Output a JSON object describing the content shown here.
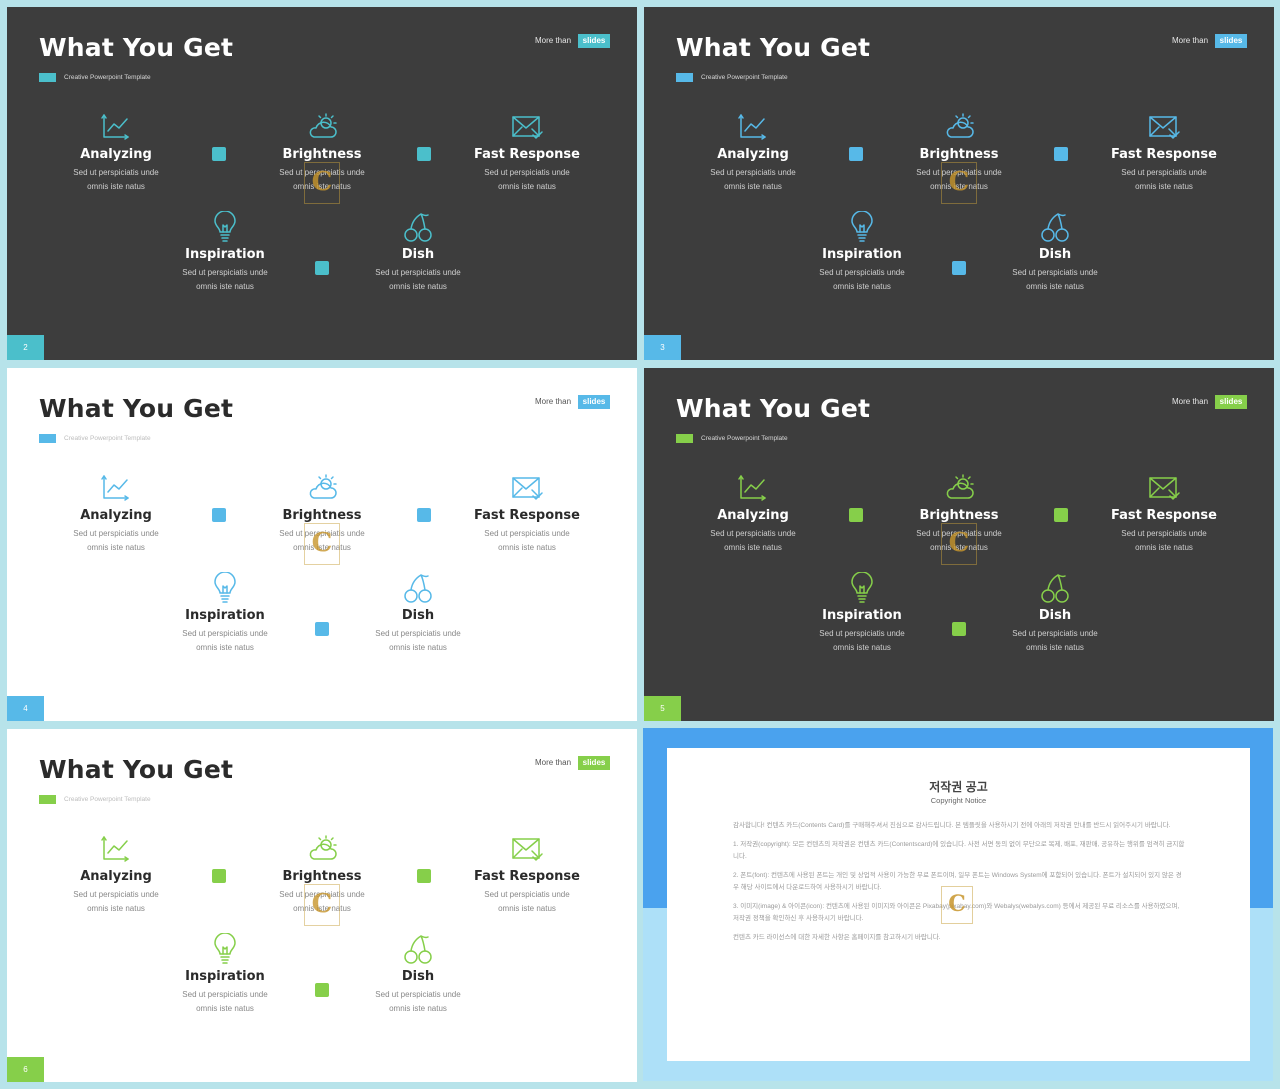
{
  "common": {
    "title": "What You Get",
    "subtitle": "Creative Powerpoint Template",
    "more_text": "More than",
    "more_badge": "slides",
    "desc_line1": "Sed ut perspiciatis unde",
    "desc_line2": "omnis iste natus",
    "watermark_letter": "C",
    "items": {
      "analyzing": "Analyzing",
      "brightness": "Brightness",
      "fast_response": "Fast Response",
      "inspiration": "Inspiration",
      "dish": "Dish"
    },
    "icons": {
      "analyzing": "line-chart-icon",
      "brightness": "cloud-sun-icon",
      "fast_response": "envelope-check-icon",
      "inspiration": "light-bulb-icon",
      "dish": "cherries-icon"
    }
  },
  "slides": [
    {
      "page": "2",
      "theme": "dark",
      "accent": "#4bbfcb"
    },
    {
      "page": "3",
      "theme": "dark",
      "accent": "#57b9e8"
    },
    {
      "page": "4",
      "theme": "light",
      "accent": "#57b9e8"
    },
    {
      "page": "5",
      "theme": "dark",
      "accent": "#86cf4a"
    },
    {
      "page": "6",
      "theme": "light",
      "accent": "#86cf4a"
    }
  ],
  "notice": {
    "title": "저작권 공고",
    "subtitle": "Copyright Notice",
    "p1": "감사합니다! 컨텐츠 카드(Contents Card)를 구매해주셔서 진심으로 감사드립니다. 본 템플릿을 사용하시기 전에 아래의 저작권 안내를 반드시 읽어주시기 바랍니다.",
    "p2": "1. 저작권(copyright): 모든 컨텐츠의 저작권은 컨텐츠 카드(Contentscard)에 있습니다. 사전 서면 동의 없이 무단으로 복제, 배포, 재판매, 공유하는 행위를 엄격히 금지합니다.",
    "p3": "2. 폰트(font): 컨텐츠에 사용된 폰트는 개인 및 상업적 사용이 가능한 무료 폰트이며, 일부 폰트는 Windows System에 포함되어 있습니다. 폰트가 설치되어 있지 않은 경우 해당 사이트에서 다운로드하여 사용하시기 바랍니다.",
    "p4": "3. 이미지(image) & 아이콘(icon): 컨텐츠에 사용된 이미지와 아이콘은 Pixabay(pixabay.com)와 Webalys(webalys.com) 등에서 제공된 무료 리소스를 사용하였으며, 저작권 정책을 확인하신 후 사용하시기 바랍니다.",
    "p5": "컨텐츠 카드 라이선스에 대한 자세한 사항은 홈페이지를 참고하시기 바랍니다."
  }
}
